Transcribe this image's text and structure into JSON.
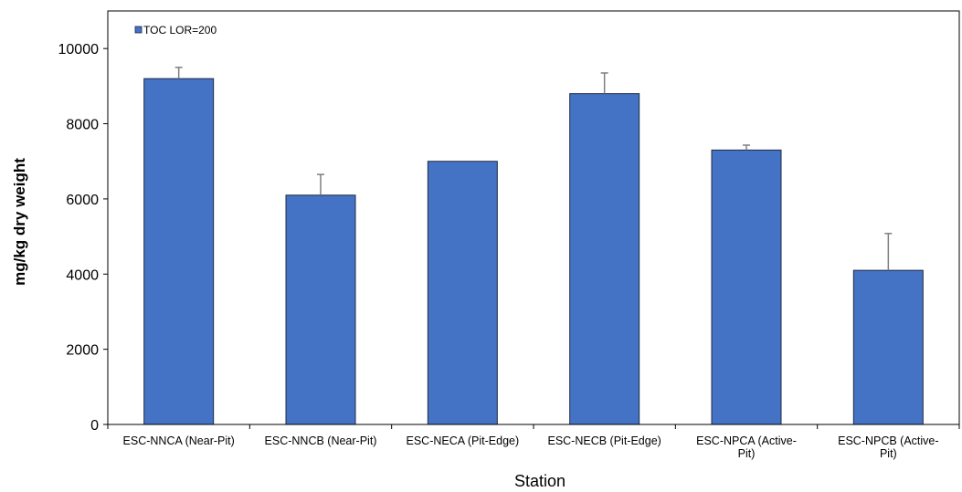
{
  "chart_data": {
    "type": "bar",
    "categories": [
      [
        "ESC-NNCA (Near-Pit)"
      ],
      [
        "ESC-NNCB (Near-Pit)"
      ],
      [
        "ESC-NECA (Pit-Edge)"
      ],
      [
        "ESC-NECB (Pit-Edge)"
      ],
      [
        "ESC-NPCA (Active-",
        "Pit)"
      ],
      [
        "ESC-NPCB (Active-",
        "Pit)"
      ]
    ],
    "series": [
      {
        "name": "TOC LOR=200",
        "values": [
          9200,
          6100,
          7000,
          8800,
          7300,
          4100
        ],
        "error_upper": [
          300,
          550,
          0,
          550,
          130,
          980
        ]
      }
    ],
    "xlabel": "Station",
    "ylabel": "mg/kg dry weight",
    "ylim": [
      0,
      11000
    ],
    "yticks": [
      0,
      2000,
      4000,
      6000,
      8000,
      10000
    ],
    "legend": "top-left",
    "grid": false,
    "colors": {
      "bar": "#4472C4",
      "bar_edge": "#1F2A44",
      "error_bar": "#7F7F7F",
      "axis": "#000000"
    }
  }
}
